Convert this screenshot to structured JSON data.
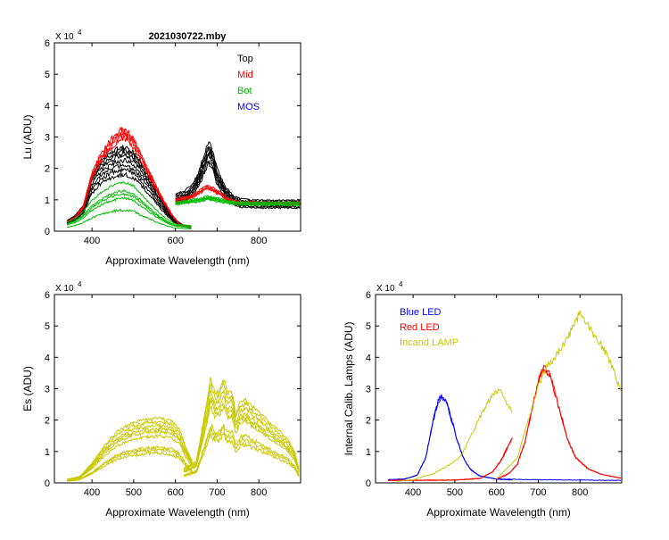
{
  "figure_title": "2021030722.mby",
  "chart_data": [
    {
      "id": "lu",
      "type": "line",
      "title": "2021030722.mby",
      "xlabel": "Approximate Wavelength (nm)",
      "ylabel": "Lu (ADU)",
      "scale_label": "X 10",
      "scale_exp": "4",
      "xlim": [
        310,
        900
      ],
      "ylim": [
        0,
        6
      ],
      "xticks": [
        400,
        500,
        600,
        700,
        800
      ],
      "xticklabels": [
        "400",
        "",
        "600",
        "",
        "800"
      ],
      "yticks": [
        0,
        1,
        2,
        3,
        4,
        5,
        6
      ],
      "legend": [
        {
          "label": "Top",
          "color": "#000000"
        },
        {
          "label": "Mid",
          "color": "#ff0000"
        },
        {
          "label": "Bot",
          "color": "#00bb00"
        },
        {
          "label": "MOS",
          "color": "#0000ff"
        }
      ],
      "series": [
        {
          "name": "Top (black, 330-640 nm)",
          "color": "#000000",
          "count": 8,
          "points": [
            [
              340,
              0.3
            ],
            [
              360,
              0.45
            ],
            [
              380,
              0.75
            ],
            [
              390,
              1.2
            ],
            [
              400,
              1.6
            ],
            [
              420,
              2.0
            ],
            [
              440,
              2.2
            ],
            [
              460,
              2.35
            ],
            [
              480,
              2.4
            ],
            [
              500,
              2.25
            ],
            [
              520,
              1.9
            ],
            [
              540,
              1.5
            ],
            [
              560,
              1.05
            ],
            [
              580,
              0.65
            ],
            [
              600,
              0.32
            ],
            [
              620,
              0.17
            ],
            [
              638,
              0.15
            ]
          ],
          "scales": [
            0.75,
            0.82,
            0.88,
            0.94,
            1.0,
            1.04,
            1.08,
            1.12
          ]
        },
        {
          "name": "Mid (red, 330-640 nm)",
          "color": "#ff0000",
          "count": 4,
          "points": [
            [
              340,
              0.3
            ],
            [
              360,
              0.45
            ],
            [
              380,
              0.8
            ],
            [
              390,
              1.3
            ],
            [
              400,
              1.8
            ],
            [
              420,
              2.35
            ],
            [
              440,
              2.75
            ],
            [
              460,
              3.05
            ],
            [
              475,
              3.2
            ],
            [
              490,
              3.05
            ],
            [
              510,
              2.6
            ],
            [
              530,
              2.05
            ],
            [
              550,
              1.5
            ],
            [
              570,
              1.0
            ],
            [
              590,
              0.55
            ],
            [
              610,
              0.22
            ],
            [
              638,
              0.15
            ]
          ],
          "scales": [
            0.93,
            0.97,
            1.0,
            1.03
          ]
        },
        {
          "name": "Bot (green, 330-640 nm)",
          "color": "#00bb00",
          "count": 5,
          "points": [
            [
              340,
              0.25
            ],
            [
              360,
              0.35
            ],
            [
              380,
              0.55
            ],
            [
              400,
              0.85
            ],
            [
              420,
              1.05
            ],
            [
              440,
              1.2
            ],
            [
              460,
              1.32
            ],
            [
              480,
              1.35
            ],
            [
              500,
              1.25
            ],
            [
              520,
              1.0
            ],
            [
              540,
              0.75
            ],
            [
              560,
              0.52
            ],
            [
              580,
              0.33
            ],
            [
              600,
              0.2
            ],
            [
              638,
              0.15
            ]
          ],
          "scales": [
            0.5,
            0.78,
            0.88,
            0.95,
            1.15
          ]
        },
        {
          "name": "Top (black, 600-900 nm)",
          "color": "#000000",
          "count": 8,
          "points": [
            [
              600,
              1.05
            ],
            [
              620,
              1.12
            ],
            [
              640,
              1.3
            ],
            [
              655,
              1.65
            ],
            [
              670,
              2.2
            ],
            [
              680,
              2.55
            ],
            [
              690,
              2.25
            ],
            [
              700,
              1.75
            ],
            [
              720,
              1.25
            ],
            [
              740,
              0.98
            ],
            [
              760,
              0.9
            ],
            [
              800,
              0.87
            ],
            [
              850,
              0.87
            ],
            [
              898,
              0.87
            ]
          ],
          "scales": [
            0.85,
            0.9,
            0.95,
            0.98,
            1.0,
            1.04,
            1.08,
            1.13
          ]
        },
        {
          "name": "Mid (red, 600-900 nm)",
          "color": "#ff0000",
          "count": 4,
          "points": [
            [
              600,
              1.0
            ],
            [
              620,
              1.05
            ],
            [
              640,
              1.12
            ],
            [
              660,
              1.28
            ],
            [
              675,
              1.42
            ],
            [
              690,
              1.35
            ],
            [
              710,
              1.18
            ],
            [
              730,
              1.0
            ],
            [
              750,
              0.93
            ],
            [
              800,
              0.9
            ],
            [
              898,
              0.9
            ]
          ],
          "scales": [
            0.95,
            0.98,
            1.0,
            1.03
          ]
        },
        {
          "name": "Bot (green, 600-900 nm)",
          "color": "#00bb00",
          "count": 5,
          "points": [
            [
              600,
              0.88
            ],
            [
              630,
              0.94
            ],
            [
              660,
              1.0
            ],
            [
              680,
              1.06
            ],
            [
              700,
              1.0
            ],
            [
              730,
              0.92
            ],
            [
              760,
              0.88
            ],
            [
              898,
              0.87
            ]
          ],
          "scales": [
            0.95,
            0.97,
            1.0,
            1.02,
            1.05
          ]
        }
      ]
    },
    {
      "id": "es",
      "type": "line",
      "xlabel": "Approximate Wavelength (nm)",
      "ylabel": "Es (ADU)",
      "scale_label": "X 10",
      "scale_exp": "4",
      "xlim": [
        310,
        900
      ],
      "ylim": [
        0,
        6
      ],
      "xticks": [
        400,
        500,
        600,
        700,
        800
      ],
      "xticklabels": [
        "400",
        "500",
        "600",
        "700",
        "800"
      ],
      "yticks": [
        0,
        1,
        2,
        3,
        4,
        5,
        6
      ],
      "series": [
        {
          "name": "Es (olive, 340-640 nm)",
          "color": "#c8c800",
          "count": 9,
          "points": [
            [
              340,
              0.1
            ],
            [
              370,
              0.18
            ],
            [
              400,
              0.55
            ],
            [
              430,
              1.05
            ],
            [
              460,
              1.45
            ],
            [
              500,
              1.7
            ],
            [
              530,
              1.78
            ],
            [
              560,
              1.82
            ],
            [
              590,
              1.76
            ],
            [
              610,
              1.5
            ],
            [
              625,
              1.0
            ],
            [
              640,
              0.62
            ]
          ],
          "scales": [
            0.52,
            0.58,
            0.62,
            0.82,
            0.9,
            0.95,
            1.0,
            1.07,
            1.13
          ]
        },
        {
          "name": "Es (olive, 620-900 nm)",
          "color": "#c8c800",
          "count": 9,
          "points": [
            [
              620,
              0.4
            ],
            [
              650,
              0.62
            ],
            [
              670,
              1.9
            ],
            [
              685,
              3.0
            ],
            [
              695,
              2.5
            ],
            [
              705,
              2.6
            ],
            [
              715,
              2.95
            ],
            [
              725,
              2.5
            ],
            [
              735,
              2.6
            ],
            [
              745,
              1.9
            ],
            [
              755,
              2.3
            ],
            [
              770,
              2.35
            ],
            [
              790,
              2.1
            ],
            [
              810,
              1.9
            ],
            [
              830,
              1.65
            ],
            [
              850,
              1.45
            ],
            [
              870,
              1.2
            ],
            [
              885,
              0.9
            ],
            [
              897,
              0.35
            ]
          ],
          "scales": [
            0.52,
            0.58,
            0.63,
            0.83,
            0.88,
            0.93,
            1.0,
            1.07,
            1.13
          ]
        }
      ]
    },
    {
      "id": "lamps",
      "type": "line",
      "xlabel": "Approximate Wavelength (nm)",
      "ylabel": "Internal Calib. Lamps (ADU)",
      "scale_label": "X 10",
      "scale_exp": "4",
      "xlim": [
        310,
        900
      ],
      "ylim": [
        0,
        6
      ],
      "xticks": [
        400,
        500,
        600,
        700,
        800
      ],
      "xticklabels": [
        "400",
        "500",
        "600",
        "700",
        "800"
      ],
      "yticks": [
        0,
        1,
        2,
        3,
        4,
        5,
        6
      ],
      "legend": [
        {
          "label": "Blue LED",
          "color": "#0000ff"
        },
        {
          "label": "Red LED",
          "color": "#ff0000"
        },
        {
          "label": "Incand LAMP",
          "color": "#c8c800"
        }
      ],
      "series": [
        {
          "name": "Blue LED (340-640 nm)",
          "color": "#0000ff",
          "count": 2,
          "points": [
            [
              340,
              0.1
            ],
            [
              380,
              0.12
            ],
            [
              410,
              0.25
            ],
            [
              430,
              0.8
            ],
            [
              450,
              2.1
            ],
            [
              460,
              2.6
            ],
            [
              468,
              2.8
            ],
            [
              480,
              2.6
            ],
            [
              495,
              1.9
            ],
            [
              505,
              1.4
            ],
            [
              515,
              1.0
            ],
            [
              525,
              0.68
            ],
            [
              540,
              0.4
            ],
            [
              560,
              0.22
            ],
            [
              600,
              0.12
            ],
            [
              638,
              0.1
            ]
          ],
          "scales": [
            1.0,
            0.985
          ]
        },
        {
          "name": "Blue LED (600-900 nm)",
          "color": "#0000ff",
          "count": 1,
          "points": [
            [
              600,
              0.12
            ],
            [
              700,
              0.1
            ],
            [
              800,
              0.09
            ],
            [
              898,
              0.08
            ]
          ],
          "scales": [
            1.0
          ]
        },
        {
          "name": "Red LED (340-640 nm)",
          "color": "#ff0000",
          "count": 2,
          "points": [
            [
              340,
              0.08
            ],
            [
              500,
              0.09
            ],
            [
              560,
              0.14
            ],
            [
              590,
              0.35
            ],
            [
              610,
              0.7
            ],
            [
              625,
              1.1
            ],
            [
              638,
              1.45
            ]
          ],
          "scales": [
            1.0,
            0.98
          ]
        },
        {
          "name": "Red LED (600-900 nm)",
          "color": "#ff0000",
          "count": 2,
          "points": [
            [
              600,
              0.12
            ],
            [
              630,
              0.3
            ],
            [
              650,
              0.6
            ],
            [
              670,
              1.4
            ],
            [
              690,
              2.7
            ],
            [
              705,
              3.5
            ],
            [
              716,
              3.7
            ],
            [
              730,
              3.4
            ],
            [
              750,
              2.4
            ],
            [
              770,
              1.4
            ],
            [
              790,
              0.8
            ],
            [
              820,
              0.45
            ],
            [
              850,
              0.28
            ],
            [
              898,
              0.15
            ]
          ],
          "scales": [
            1.0,
            0.985
          ]
        },
        {
          "name": "Incand LAMP (340-640 nm)",
          "color": "#c8c800",
          "count": 1,
          "points": [
            [
              360,
              0.05
            ],
            [
              400,
              0.1
            ],
            [
              450,
              0.3
            ],
            [
              490,
              0.6
            ],
            [
              515,
              0.85
            ],
            [
              535,
              1.4
            ],
            [
              560,
              2.1
            ],
            [
              585,
              2.7
            ],
            [
              600,
              2.92
            ],
            [
              612,
              2.88
            ],
            [
              625,
              2.5
            ],
            [
              638,
              2.3
            ]
          ],
          "scales": [
            1.0
          ]
        },
        {
          "name": "Incand LAMP (600-900 nm)",
          "color": "#c8c800",
          "count": 1,
          "points": [
            [
              600,
              0.12
            ],
            [
              650,
              0.8
            ],
            [
              680,
              2.2
            ],
            [
              700,
              3.1
            ],
            [
              720,
              3.7
            ],
            [
              740,
              4.0
            ],
            [
              760,
              4.4
            ],
            [
              780,
              4.85
            ],
            [
              795,
              5.3
            ],
            [
              805,
              5.4
            ],
            [
              820,
              5.0
            ],
            [
              840,
              4.6
            ],
            [
              860,
              4.2
            ],
            [
              880,
              3.6
            ],
            [
              898,
              2.9
            ]
          ],
          "scales": [
            1.0
          ]
        }
      ]
    }
  ]
}
